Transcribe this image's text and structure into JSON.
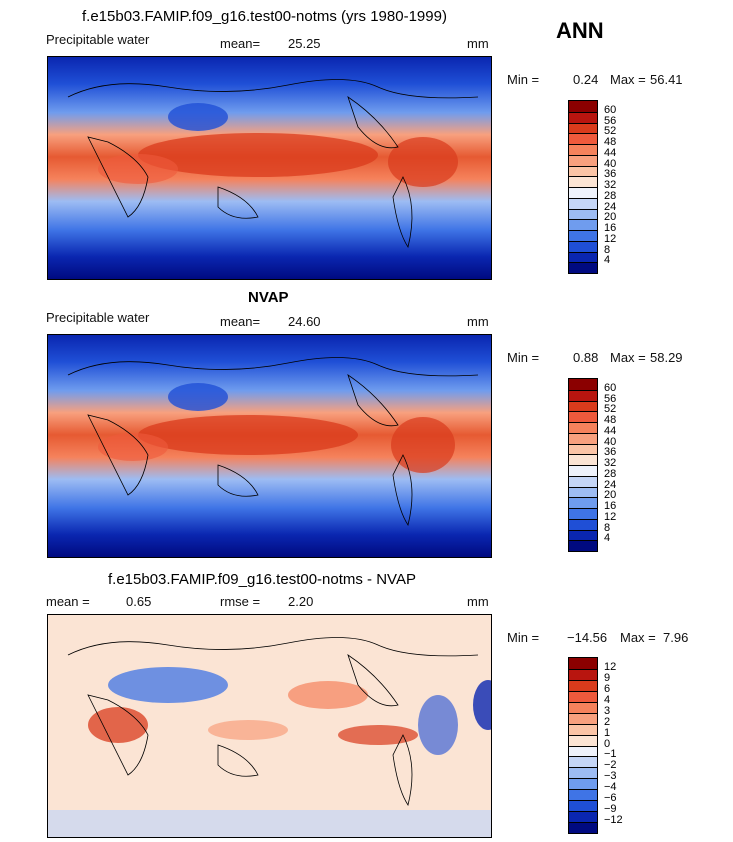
{
  "season": "ANN",
  "panels": [
    {
      "id": "model",
      "title": "f.e15b03.FAMIP.f09_g16.test00-notms (yrs 1980-1999)",
      "variable": "Precipitable water",
      "mean_label": "mean=",
      "mean_value": "25.25",
      "rmse_label": "",
      "rmse_value": "",
      "units": "mm",
      "min_label": "Min =",
      "min_value": "0.24",
      "max_label": "Max =",
      "max_value": "56.41",
      "colorbar_labels": [
        "60",
        "56",
        "52",
        "48",
        "44",
        "40",
        "36",
        "32",
        "28",
        "24",
        "20",
        "16",
        "12",
        "8",
        "4"
      ],
      "colorbar_colors": [
        "#8b0000",
        "#b8150f",
        "#d93b1c",
        "#ef5a3c",
        "#f5825c",
        "#f8a07e",
        "#fbc4a6",
        "#fbe4d4",
        "#eef2fb",
        "#c5d6f7",
        "#9dbcf3",
        "#6f9cee",
        "#3f74e6",
        "#1f4fd6",
        "#0a26b0",
        "#000a80"
      ]
    },
    {
      "id": "obs",
      "title": "NVAP",
      "variable": "Precipitable water",
      "mean_label": "mean=",
      "mean_value": "24.60",
      "rmse_label": "",
      "rmse_value": "",
      "units": "mm",
      "min_label": "Min =",
      "min_value": "0.88",
      "max_label": "Max =",
      "max_value": "58.29",
      "colorbar_labels": [
        "60",
        "56",
        "52",
        "48",
        "44",
        "40",
        "36",
        "32",
        "28",
        "24",
        "20",
        "16",
        "12",
        "8",
        "4"
      ],
      "colorbar_colors": [
        "#8b0000",
        "#b8150f",
        "#d93b1c",
        "#ef5a3c",
        "#f5825c",
        "#f8a07e",
        "#fbc4a6",
        "#fbe4d4",
        "#eef2fb",
        "#c5d6f7",
        "#9dbcf3",
        "#6f9cee",
        "#3f74e6",
        "#1f4fd6",
        "#0a26b0",
        "#000a80"
      ]
    },
    {
      "id": "diff",
      "title": "f.e15b03.FAMIP.f09_g16.test00-notms - NVAP",
      "variable": "",
      "mean_label": "mean =",
      "mean_value": "0.65",
      "rmse_label": "rmse =",
      "rmse_value": "2.20",
      "units": "mm",
      "min_label": "Min =",
      "min_value": "−14.56",
      "max_label": "Max =",
      "max_value": "7.96",
      "colorbar_labels": [
        "12",
        "9",
        "6",
        "4",
        "3",
        "2",
        "1",
        "0",
        "−1",
        "−2",
        "−3",
        "−4",
        "−6",
        "−9",
        "−12"
      ],
      "colorbar_colors": [
        "#8b0000",
        "#b8150f",
        "#d93b1c",
        "#ef5a3c",
        "#f5825c",
        "#f8a07e",
        "#fbc4a6",
        "#fbe4d4",
        "#eef2fb",
        "#c5d6f7",
        "#9dbcf3",
        "#6f9cee",
        "#3f74e6",
        "#1f4fd6",
        "#0a26b0",
        "#000a80"
      ]
    }
  ]
}
